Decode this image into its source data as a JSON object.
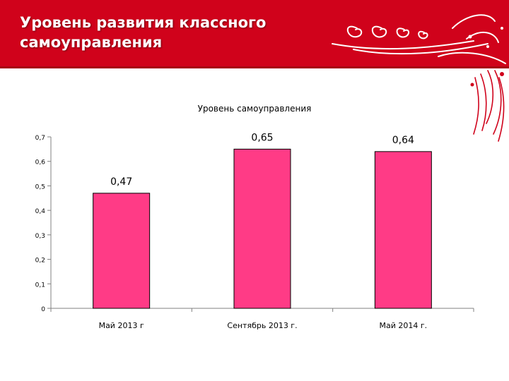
{
  "slide": {
    "title_line1": "Уровень развития классного",
    "title_line2": "самоуправления"
  },
  "colors": {
    "header": "#d0021b",
    "bar": "#ff3b86",
    "ornament": "#ffffff"
  },
  "chart_data": {
    "type": "bar",
    "title": "Уровень самоуправления",
    "categories": [
      "Май 2013 г",
      "Сентябрь 2013 г.",
      "Май 2014 г."
    ],
    "values": [
      0.47,
      0.65,
      0.64
    ],
    "data_labels": [
      "0,47",
      "0,65",
      "0,64"
    ],
    "yticks": [
      0,
      0.1,
      0.2,
      0.3,
      0.4,
      0.5,
      0.6,
      0.7
    ],
    "ytick_labels": [
      "0",
      "0,1",
      "0,2",
      "0,3",
      "0,4",
      "0,5",
      "0,6",
      "0,7"
    ],
    "ylim": [
      0,
      0.7
    ],
    "xlabel": "",
    "ylabel": "",
    "grid": false,
    "legend": "none"
  }
}
